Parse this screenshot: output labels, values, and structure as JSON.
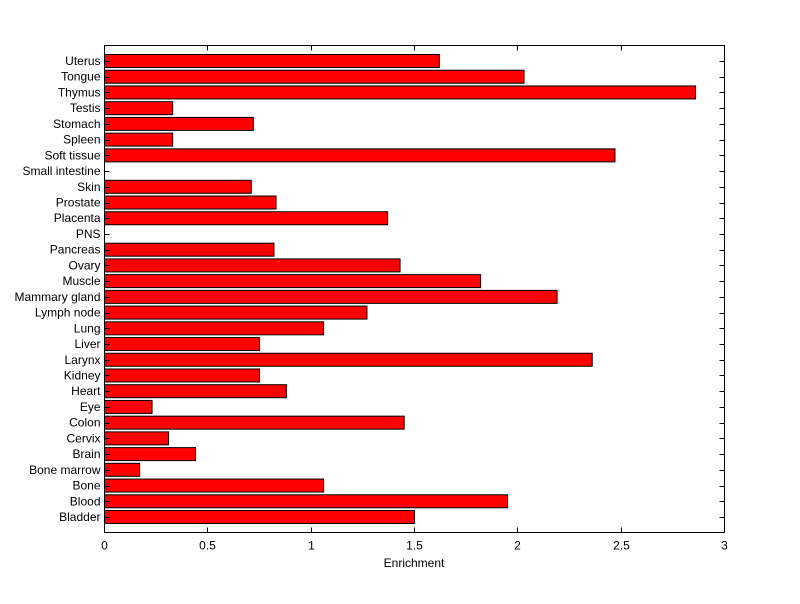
{
  "chart_data": {
    "type": "bar",
    "orientation": "horizontal",
    "title": "",
    "xlabel": "Enrichment",
    "ylabel": "",
    "xlim": [
      0,
      3
    ],
    "xticks": [
      0,
      0.5,
      1,
      1.5,
      2,
      2.5,
      3
    ],
    "xtick_labels": [
      "0",
      "0.5",
      "1",
      "1.5",
      "2",
      "2.5",
      "3"
    ],
    "grid": false,
    "bar_color": "#ff0000",
    "edge_color": "#000000",
    "categories": [
      "Uterus",
      "Tongue",
      "Thymus",
      "Testis",
      "Stomach",
      "Spleen",
      "Soft tissue",
      "Small intestine",
      "Skin",
      "Prostate",
      "Placenta",
      "PNS",
      "Pancreas",
      "Ovary",
      "Muscle",
      "Mammary gland",
      "Lymph node",
      "Lung",
      "Liver",
      "Larynx",
      "Kidney",
      "Heart",
      "Eye",
      "Colon",
      "Cervix",
      "Brain",
      "Bone marrow",
      "Bone",
      "Blood",
      "Bladder"
    ],
    "values": [
      1.62,
      2.03,
      2.86,
      0.33,
      0.72,
      0.33,
      2.47,
      0,
      0.71,
      0.83,
      1.37,
      0,
      0.82,
      1.43,
      1.82,
      2.19,
      1.27,
      1.06,
      0.75,
      2.36,
      0.75,
      0.88,
      0.23,
      1.45,
      0.31,
      0.44,
      0.17,
      1.06,
      1.95,
      1.5
    ]
  }
}
